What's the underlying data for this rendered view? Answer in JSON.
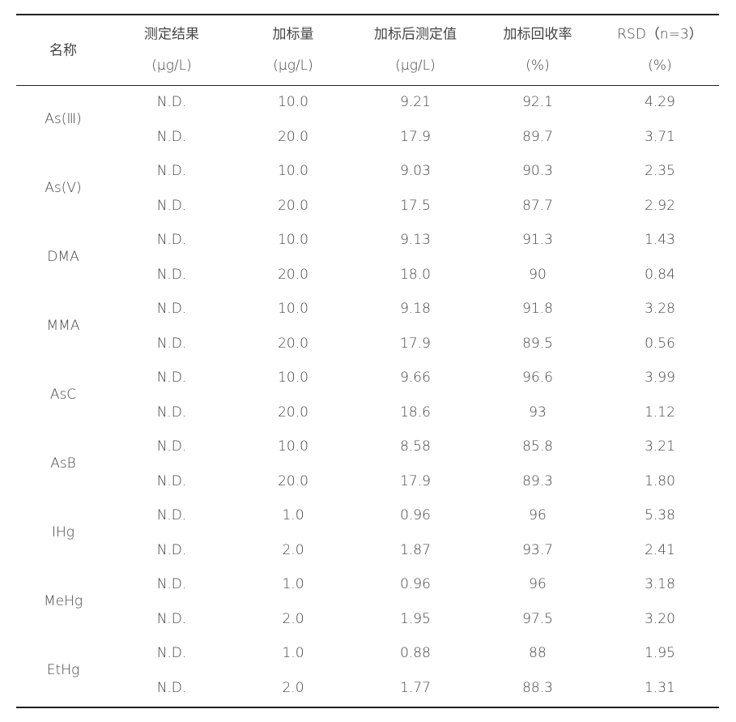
{
  "table": {
    "header": {
      "name": "名称",
      "columns": [
        {
          "title": "测定结果",
          "unit": "(μg/L)"
        },
        {
          "title": "加标量",
          "unit": "(μg/L)"
        },
        {
          "title": "加标后测定值",
          "unit": "(μg/L)"
        },
        {
          "title": "加标回收率",
          "unit": "(%)"
        },
        {
          "title": "RSD（n=3）",
          "unit": "(%)"
        }
      ]
    },
    "groups": [
      {
        "name": "As(Ⅲ)",
        "rows": [
          [
            "N.D.",
            "10.0",
            "9.21",
            "92.1",
            "4.29"
          ],
          [
            "N.D.",
            "20.0",
            "17.9",
            "89.7",
            "3.71"
          ]
        ]
      },
      {
        "name": "As(Ⅴ)",
        "rows": [
          [
            "N.D.",
            "10.0",
            "9.03",
            "90.3",
            "2.35"
          ],
          [
            "N.D.",
            "20.0",
            "17.5",
            "87.7",
            "2.92"
          ]
        ]
      },
      {
        "name": "DMA",
        "rows": [
          [
            "N.D.",
            "10.0",
            "9.13",
            "91.3",
            "1.43"
          ],
          [
            "N.D.",
            "20.0",
            "18.0",
            "90",
            "0.84"
          ]
        ]
      },
      {
        "name": "MMA",
        "rows": [
          [
            "N.D.",
            "10.0",
            "9.18",
            "91.8",
            "3.28"
          ],
          [
            "N.D.",
            "20.0",
            "17.9",
            "89.5",
            "0.56"
          ]
        ]
      },
      {
        "name": "AsC",
        "rows": [
          [
            "N.D.",
            "10.0",
            "9.66",
            "96.6",
            "3.99"
          ],
          [
            "N.D.",
            "20.0",
            "18.6",
            "93",
            "1.12"
          ]
        ]
      },
      {
        "name": "AsB",
        "rows": [
          [
            "N.D.",
            "10.0",
            "8.58",
            "85.8",
            "3.21"
          ],
          [
            "N.D.",
            "20.0",
            "17.9",
            "89.3",
            "1.80"
          ]
        ]
      },
      {
        "name": "IHg",
        "rows": [
          [
            "N.D.",
            "1.0",
            "0.96",
            "96",
            "5.38"
          ],
          [
            "N.D.",
            "2.0",
            "1.87",
            "93.7",
            "2.41"
          ]
        ]
      },
      {
        "name": "MeHg",
        "rows": [
          [
            "N.D.",
            "1.0",
            "0.96",
            "96",
            "3.18"
          ],
          [
            "N.D.",
            "2.0",
            "1.95",
            "97.5",
            "3.20"
          ]
        ]
      },
      {
        "name": "EtHg",
        "rows": [
          [
            "N.D.",
            "1.0",
            "0.88",
            "88",
            "1.95"
          ],
          [
            "N.D.",
            "2.0",
            "1.77",
            "88.3",
            "1.31"
          ]
        ]
      }
    ]
  }
}
